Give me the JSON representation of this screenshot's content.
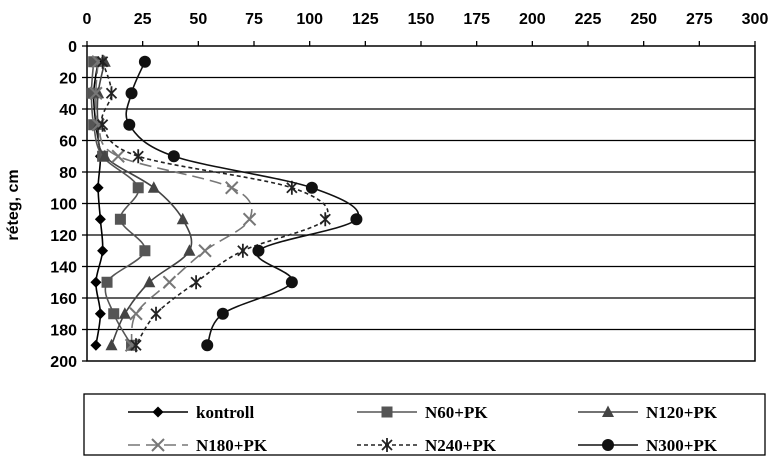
{
  "chart_data": {
    "type": "line",
    "ylabel": "réteg, cm",
    "xlabel": "",
    "xlim": [
      0,
      300
    ],
    "ylim": [
      0,
      200
    ],
    "y_inverted": true,
    "x_axis_position": "top",
    "x_ticks": [
      0,
      25,
      50,
      75,
      100,
      125,
      150,
      175,
      200,
      225,
      250,
      275,
      300
    ],
    "y_ticks": [
      0,
      20,
      40,
      60,
      80,
      100,
      120,
      140,
      160,
      180,
      200
    ],
    "grid": "horizontal",
    "legend_position": "bottom",
    "depths": [
      10,
      30,
      50,
      70,
      90,
      110,
      130,
      150,
      170,
      190
    ],
    "series": [
      {
        "name": "kontroll",
        "marker": "diamond",
        "dash": "solid",
        "color": "#000000",
        "values": [
          5,
          3,
          4,
          6,
          5,
          6,
          7,
          4,
          6,
          4
        ]
      },
      {
        "name": "N60+PK",
        "marker": "square",
        "dash": "solid",
        "color": "#555555",
        "values": [
          3,
          2,
          3,
          7,
          23,
          15,
          26,
          9,
          12,
          20
        ]
      },
      {
        "name": "N120+PK",
        "marker": "triangle",
        "dash": "solid",
        "color": "#444444",
        "values": [
          8,
          5,
          5,
          8,
          30,
          43,
          46,
          28,
          17,
          11
        ]
      },
      {
        "name": "N180+PK",
        "marker": "x",
        "dash": "longdash",
        "color": "#777777",
        "values": [
          5,
          4,
          5,
          14,
          65,
          73,
          53,
          37,
          22,
          20
        ]
      },
      {
        "name": "N240+PK",
        "marker": "star",
        "dash": "shortdash",
        "color": "#222222",
        "values": [
          7,
          11,
          7,
          23,
          92,
          107,
          70,
          49,
          31,
          22
        ]
      },
      {
        "name": "N300+PK",
        "marker": "circle",
        "dash": "solid",
        "color": "#111111",
        "values": [
          26,
          20,
          19,
          39,
          101,
          121,
          77,
          92,
          61,
          54
        ]
      }
    ]
  }
}
